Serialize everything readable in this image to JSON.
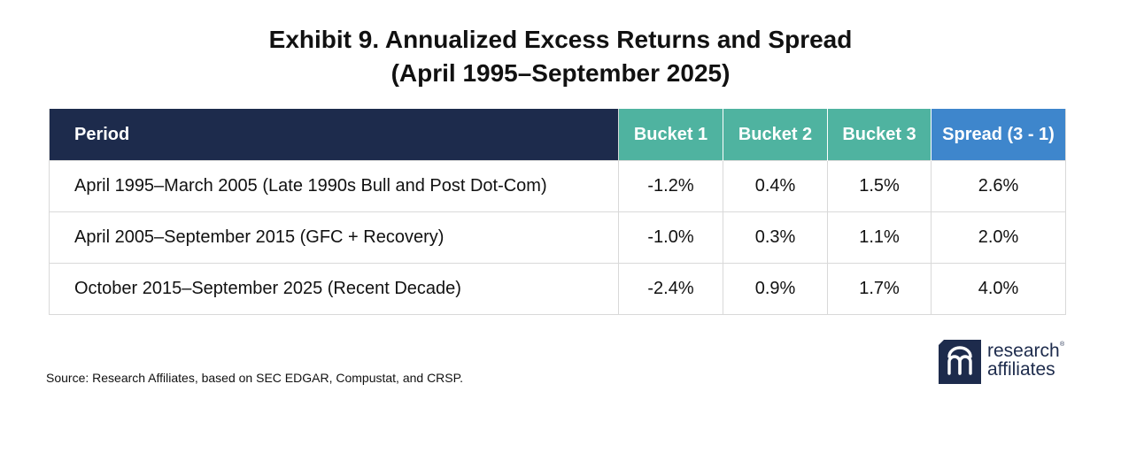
{
  "title": {
    "line1": "Exhibit 9. Annualized Excess Returns and Spread",
    "line2": "(April 1995–September 2025)"
  },
  "table": {
    "headers": {
      "period": "Period",
      "bucket1": "Bucket 1",
      "bucket2": "Bucket 2",
      "bucket3": "Bucket 3",
      "spread": "Spread (3 - 1)"
    },
    "rows": [
      {
        "period": "April 1995–March 2005 (Late 1990s Bull and Post Dot-Com)",
        "bucket1": "-1.2%",
        "bucket2": "0.4%",
        "bucket3": "1.5%",
        "spread": "2.6%"
      },
      {
        "period": "April 2005–September 2015 (GFC + Recovery)",
        "bucket1": "-1.0%",
        "bucket2": "0.3%",
        "bucket3": "1.1%",
        "spread": "2.0%"
      },
      {
        "period": "October 2015–September 2025 (Recent Decade)",
        "bucket1": "-2.4%",
        "bucket2": "0.9%",
        "bucket3": "1.7%",
        "spread": "4.0%"
      }
    ]
  },
  "source": "Source: Research Affiliates, based on SEC EDGAR, Compustat, and CRSP.",
  "logo": {
    "line1": "research",
    "line2": "affiliates",
    "trademark": "®"
  },
  "colors": {
    "period_header": "#1d2b4c",
    "bucket_header": "#4fb3a0",
    "spread_header": "#3e86cc",
    "logo": "#1d2b4c",
    "grid": "#d9d9d9"
  }
}
